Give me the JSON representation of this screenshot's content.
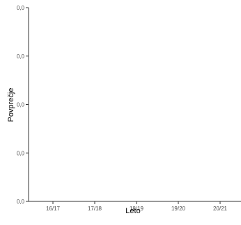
{
  "chart_data": {
    "type": "bar",
    "categories": [
      "16/17",
      "17/18",
      "18/19",
      "19/20",
      "20/21"
    ],
    "values": [
      0,
      0,
      0,
      0,
      0
    ],
    "yticks": [
      "0,0",
      "0,0",
      "0,0",
      "0,0",
      "0,0"
    ],
    "xlabel": "Leto",
    "ylabel": "Povprečje",
    "grid": false
  }
}
